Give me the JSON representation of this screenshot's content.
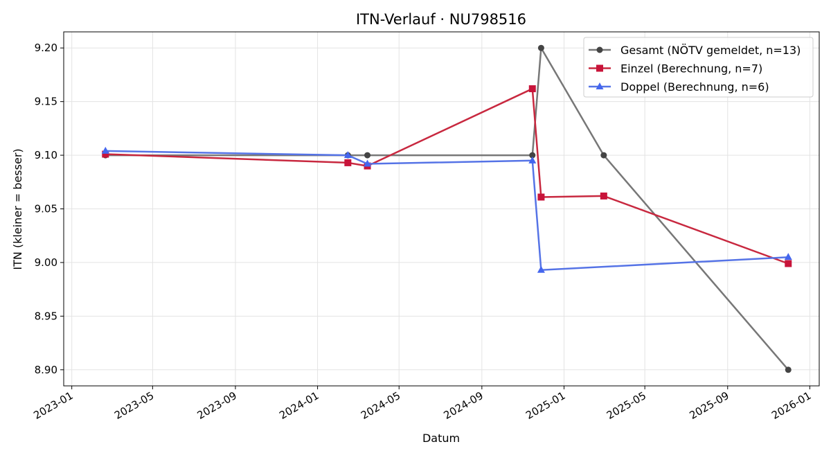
{
  "chart_data": {
    "type": "line",
    "title": "ITN-Verlauf · NU798516",
    "xlabel": "Datum",
    "ylabel": "ITN  (kleiner = besser)",
    "x_axis_type": "date",
    "xlim": [
      "2022-12-20",
      "2026-01-15"
    ],
    "ylim": [
      8.885,
      9.215
    ],
    "x_ticks": [
      "2023-01-01",
      "2023-05-01",
      "2023-09-01",
      "2024-01-01",
      "2024-05-01",
      "2024-09-01",
      "2025-01-01",
      "2025-05-01",
      "2025-09-01",
      "2026-01-01"
    ],
    "x_tick_labels": [
      "2023-01",
      "2023-05",
      "2023-09",
      "2024-01",
      "2024-05",
      "2024-09",
      "2025-01",
      "2025-05",
      "2025-09",
      "2026-01"
    ],
    "y_ticks": [
      8.9,
      8.95,
      9.0,
      9.05,
      9.1,
      9.15,
      9.2
    ],
    "y_tick_labels": [
      "8.90",
      "8.95",
      "9.00",
      "9.05",
      "9.10",
      "9.15",
      "9.20"
    ],
    "grid": true,
    "legend_position": "top-right",
    "series": [
      {
        "name": "Gesamt (NÖTV gemeldet, n=13)",
        "color": "#777777",
        "marker_color": "#444444",
        "marker": "circle",
        "points": [
          {
            "x": "2023-02-20",
            "y": 9.1
          },
          {
            "x": "2024-02-15",
            "y": 9.1
          },
          {
            "x": "2024-03-15",
            "y": 9.1
          },
          {
            "x": "2024-11-15",
            "y": 9.1
          },
          {
            "x": "2024-11-28",
            "y": 9.2
          },
          {
            "x": "2025-03-01",
            "y": 9.1
          },
          {
            "x": "2025-11-30",
            "y": 8.9
          }
        ]
      },
      {
        "name": "Einzel (Berechnung, n=7)",
        "color": "#c8283f",
        "marker_color": "#c8143a",
        "marker": "square",
        "points": [
          {
            "x": "2023-02-20",
            "y": 9.101
          },
          {
            "x": "2024-02-15",
            "y": 9.093
          },
          {
            "x": "2024-03-15",
            "y": 9.09
          },
          {
            "x": "2024-11-15",
            "y": 9.162
          },
          {
            "x": "2024-11-28",
            "y": 9.061
          },
          {
            "x": "2025-03-01",
            "y": 9.062
          },
          {
            "x": "2025-11-30",
            "y": 8.999
          }
        ]
      },
      {
        "name": "Doppel (Berechnung, n=6)",
        "color": "#5573e6",
        "marker_color": "#4466ee",
        "marker": "triangle",
        "points": [
          {
            "x": "2023-02-20",
            "y": 9.104
          },
          {
            "x": "2024-02-15",
            "y": 9.1
          },
          {
            "x": "2024-03-15",
            "y": 9.092
          },
          {
            "x": "2024-11-15",
            "y": 9.095
          },
          {
            "x": "2024-11-28",
            "y": 8.993
          },
          {
            "x": "2025-11-30",
            "y": 9.005
          }
        ]
      }
    ]
  }
}
